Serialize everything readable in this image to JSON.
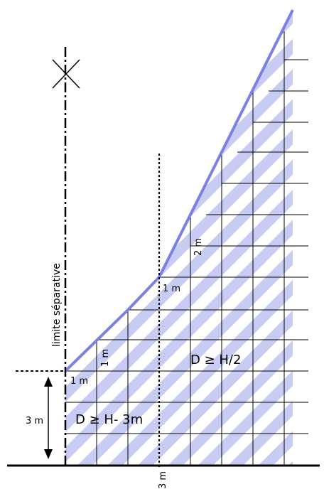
{
  "labels": {
    "limite": "limite séparative",
    "one_m_bottom": "1 m",
    "one_m_vertical": "1 m",
    "one_m_mid": "1 m",
    "two_m": "2 m",
    "three_m_side": "3 m",
    "three_m_bottom": "3 m",
    "formula_left": "D ≥ H- 3m",
    "formula_right": "D ≥ H/2"
  },
  "colors": {
    "hatch": "#c8ccf2",
    "envelope_line": "#7a80e6",
    "grid_line": "#000000",
    "ground_line": "#000000"
  }
}
